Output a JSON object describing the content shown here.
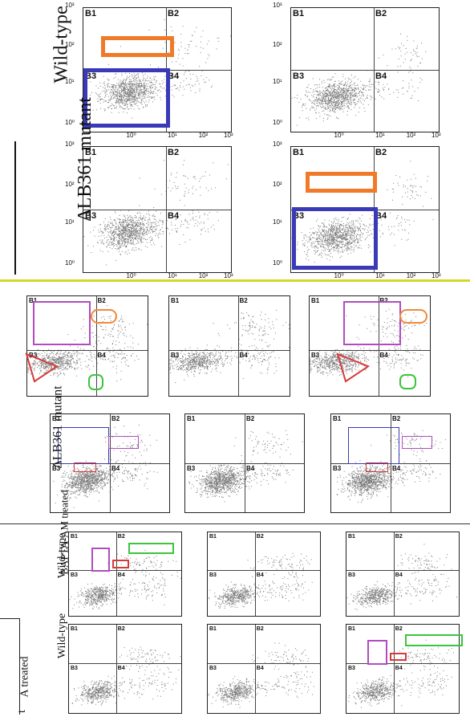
{
  "panels": {
    "a": {
      "row_labels": [
        "Wild-type",
        "ΔLB361 mutant"
      ],
      "quadrants": [
        "B1",
        "B2",
        "B3",
        "B4"
      ],
      "y_ticks": [
        "10³",
        "10²",
        "10¹",
        "10⁰"
      ],
      "x_ticks": [
        "10⁰",
        "10¹",
        "10²",
        "10³"
      ],
      "gate_colors": {
        "orange": "#f07a28",
        "blue": "#3a3ab8"
      }
    },
    "b": {
      "row_labels": [
        "ΔLB361 mutant"
      ],
      "quadrants": [
        "B1",
        "B2",
        "B3",
        "B4"
      ],
      "gate_colors": {
        "purple": "#b04cc0",
        "orange": "#f08a3a",
        "red": "#d63a3a",
        "green": "#3cc43c",
        "blue": "#3a3ab8"
      }
    },
    "c": {
      "row_labels": [
        "BAPTA-AM treated",
        "Wild-type",
        "Wild-type",
        "A treated",
        "t"
      ],
      "quadrants": [
        "B1",
        "B2",
        "B3",
        "B4"
      ],
      "gate_colors": {
        "purple": "#b04cc0",
        "red": "#d63a3a",
        "green": "#3cc43c"
      }
    }
  },
  "separator_colors": {
    "yellow": "#d6d62a",
    "dark": "#333333"
  }
}
